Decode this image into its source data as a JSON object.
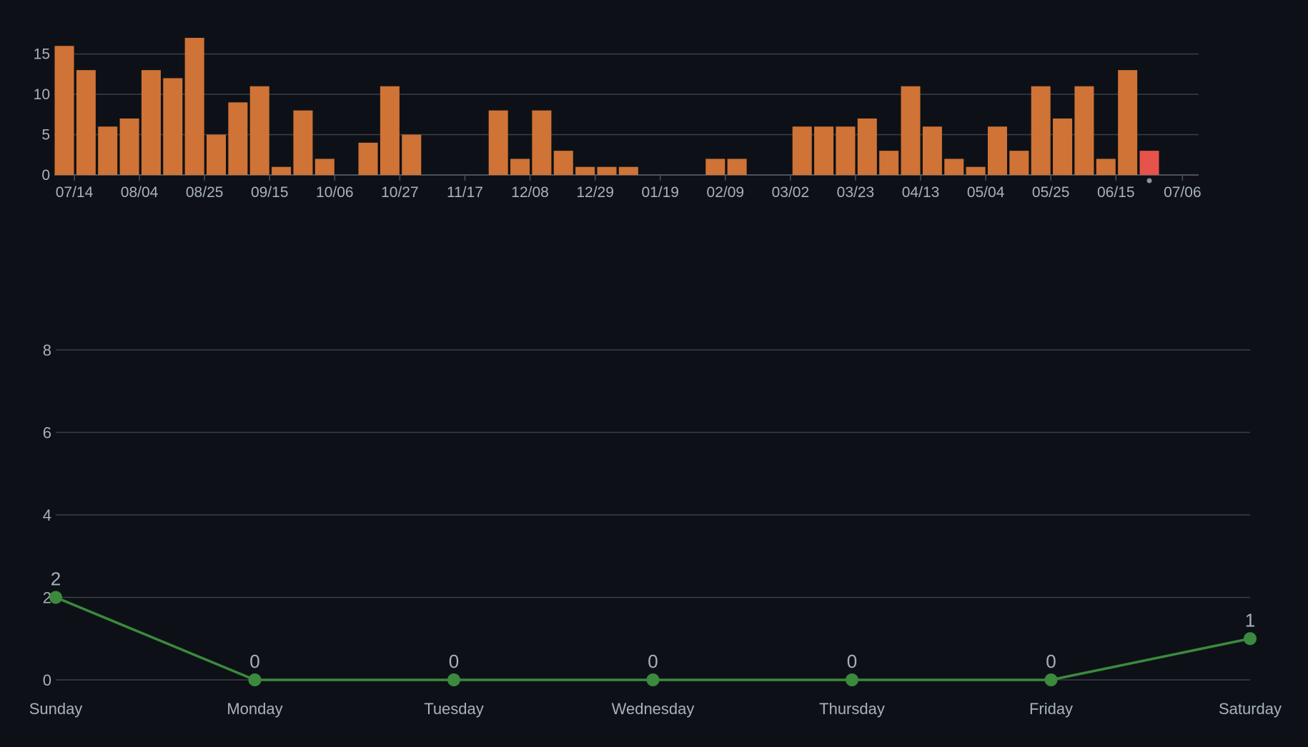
{
  "colors": {
    "background": "#0d1117",
    "gridline": "#3a3f46",
    "axis": "#4a5059",
    "tick_text": "#a8b1bb",
    "bar": "#d07336",
    "bar_current": "#e5534b",
    "line": "#3b8a3e",
    "point_label": "#a8b1bb"
  },
  "chart_data": [
    {
      "type": "bar",
      "title": "",
      "xlabel": "",
      "ylabel": "",
      "ylim": [
        0,
        17
      ],
      "yticks": [
        0,
        5,
        10,
        15
      ],
      "grid": true,
      "x_tick_labels": [
        "07/14",
        "08/04",
        "08/25",
        "09/15",
        "10/06",
        "10/27",
        "11/17",
        "12/08",
        "12/29",
        "01/19",
        "02/09",
        "03/02",
        "03/23",
        "04/13",
        "05/04",
        "05/25",
        "06/15",
        "07/06"
      ],
      "values": [
        16,
        13,
        6,
        7,
        13,
        12,
        17,
        5,
        9,
        11,
        1,
        8,
        2,
        0,
        4,
        11,
        5,
        0,
        0,
        0,
        8,
        2,
        8,
        3,
        1,
        1,
        1,
        0,
        0,
        0,
        2,
        2,
        0,
        0,
        6,
        6,
        6,
        7,
        3,
        11,
        6,
        2,
        1,
        6,
        3,
        11,
        7,
        11,
        2,
        13,
        3
      ],
      "highlight_last": true
    },
    {
      "type": "line",
      "title": "",
      "xlabel": "",
      "ylabel": "",
      "ylim": [
        0,
        8
      ],
      "yticks": [
        0,
        2,
        4,
        6,
        8
      ],
      "grid": true,
      "categories": [
        "Sunday",
        "Monday",
        "Tuesday",
        "Wednesday",
        "Thursday",
        "Friday",
        "Saturday"
      ],
      "values": [
        2,
        0,
        0,
        0,
        0,
        0,
        1
      ],
      "data_labels": [
        "2",
        "0",
        "0",
        "0",
        "0",
        "0",
        "1"
      ]
    }
  ]
}
